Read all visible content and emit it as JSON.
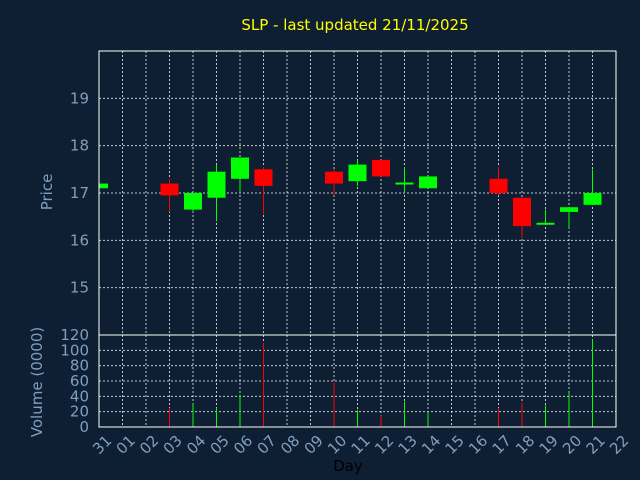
{
  "chart_data": {
    "type": "candlestick",
    "title": "SLP - last updated 21/11/2025",
    "xlabel": "Day",
    "price_panel": {
      "ylabel": "Price",
      "ylim": [
        14,
        20
      ],
      "yticks": [
        15,
        16,
        17,
        18,
        19
      ]
    },
    "volume_panel": {
      "ylabel": "Volume (0000)",
      "ylim": [
        0,
        120
      ],
      "yticks": [
        0,
        20,
        40,
        60,
        80,
        100,
        120
      ]
    },
    "grid": true,
    "colors": {
      "up": "#00ff00",
      "down": "#ff0000",
      "title": "#ffff00",
      "axis": "#7f9fbf",
      "background": "#0f1f33"
    },
    "x_ticks": [
      "31",
      "01",
      "02",
      "03",
      "04",
      "05",
      "06",
      "07",
      "08",
      "09",
      "10",
      "11",
      "12",
      "13",
      "14",
      "15",
      "16",
      "17",
      "18",
      "19",
      "20",
      "21",
      "22"
    ],
    "candles": [
      {
        "day": "31",
        "open": 17.1,
        "high": 17.2,
        "low": 17.1,
        "close": 17.2,
        "volume": 0
      },
      {
        "day": "03",
        "open": 17.2,
        "high": 17.3,
        "low": 16.6,
        "close": 16.95,
        "volume": 25
      },
      {
        "day": "04",
        "open": 16.65,
        "high": 17.0,
        "low": 16.6,
        "close": 17.0,
        "volume": 30
      },
      {
        "day": "05",
        "open": 16.9,
        "high": 17.6,
        "low": 16.4,
        "close": 17.45,
        "volume": 25
      },
      {
        "day": "06",
        "open": 17.3,
        "high": 17.75,
        "low": 17.0,
        "close": 17.75,
        "volume": 42
      },
      {
        "day": "07",
        "open": 17.5,
        "high": 17.55,
        "low": 16.55,
        "close": 17.15,
        "volume": 110
      },
      {
        "day": "10",
        "open": 17.45,
        "high": 17.5,
        "low": 16.95,
        "close": 17.2,
        "volume": 58
      },
      {
        "day": "11",
        "open": 17.25,
        "high": 17.7,
        "low": 17.15,
        "close": 17.6,
        "volume": 22
      },
      {
        "day": "12",
        "open": 17.7,
        "high": 17.7,
        "low": 17.35,
        "close": 17.35,
        "volume": 15
      },
      {
        "day": "13",
        "open": 17.2,
        "high": 17.55,
        "low": 17.0,
        "close": 17.2,
        "volume": 33
      },
      {
        "day": "14",
        "open": 17.1,
        "high": 17.35,
        "low": 17.1,
        "close": 17.35,
        "volume": 20
      },
      {
        "day": "17",
        "open": 17.3,
        "high": 17.55,
        "low": 16.95,
        "close": 17.0,
        "volume": 25
      },
      {
        "day": "18",
        "open": 16.9,
        "high": 16.9,
        "low": 16.05,
        "close": 16.3,
        "volume": 32
      },
      {
        "day": "19",
        "open": 16.35,
        "high": 16.65,
        "low": 16.35,
        "close": 16.35,
        "volume": 28
      },
      {
        "day": "20",
        "open": 16.6,
        "high": 16.7,
        "low": 16.25,
        "close": 16.7,
        "volume": 45
      },
      {
        "day": "21",
        "open": 16.75,
        "high": 17.5,
        "low": 16.75,
        "close": 17.0,
        "volume": 115
      }
    ]
  }
}
